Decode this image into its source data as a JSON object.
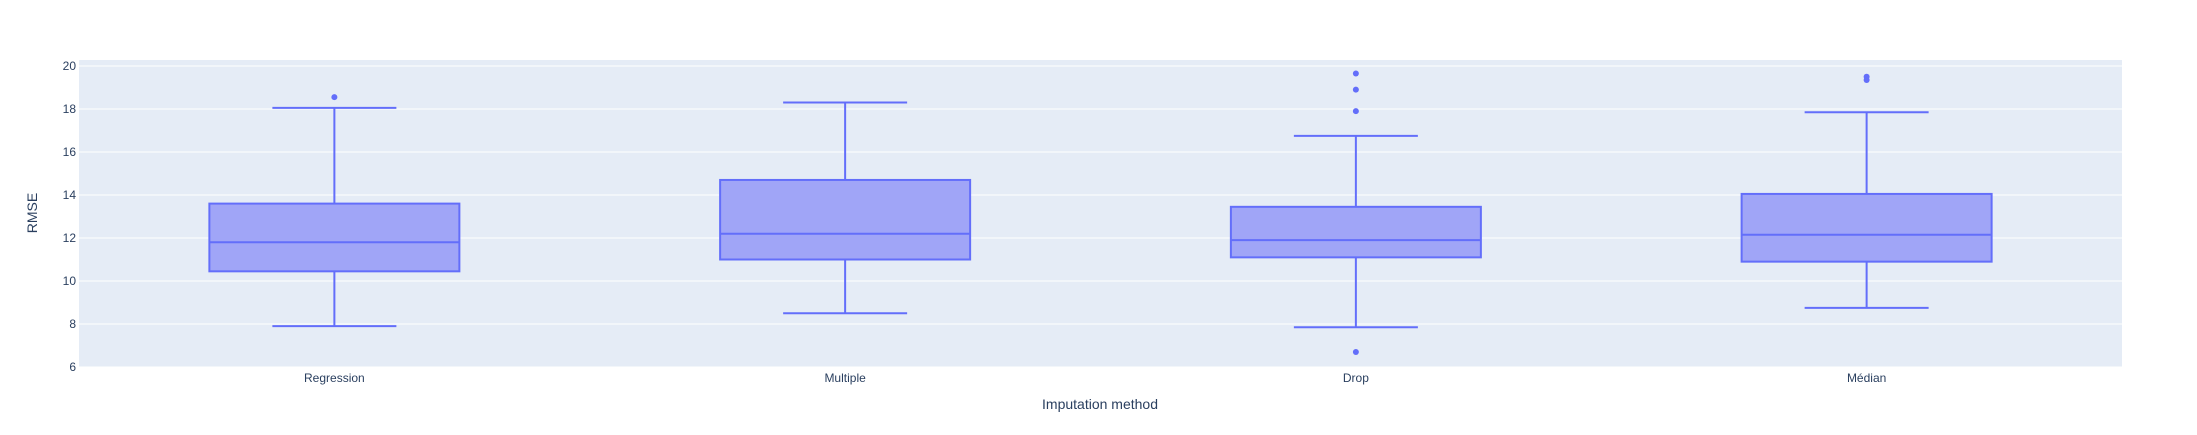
{
  "chart_data": {
    "type": "box",
    "xlabel": "Imputation method",
    "ylabel": "RMSE",
    "ylim": [
      6,
      20
    ],
    "yticks": [
      6,
      8,
      10,
      12,
      14,
      16,
      18,
      20
    ],
    "grid": true,
    "legend": "none",
    "colors": {
      "plot_bg": "#e5ecf6",
      "grid": "#ffffff",
      "box_line": "#636efa",
      "box_fill": "#a0a5f7",
      "text": "#2a3f5f"
    },
    "categories": [
      "Regression",
      "Multiple",
      "Drop",
      "Médian"
    ],
    "boxes": [
      {
        "category": "Regression",
        "lower_whisker": 7.9,
        "q1": 10.45,
        "median": 11.8,
        "q3": 13.6,
        "upper_whisker": 18.05,
        "outliers": [
          18.55
        ]
      },
      {
        "category": "Multiple",
        "lower_whisker": 8.5,
        "q1": 11.0,
        "median": 12.2,
        "q3": 14.7,
        "upper_whisker": 18.3,
        "outliers": []
      },
      {
        "category": "Drop",
        "lower_whisker": 7.85,
        "q1": 11.1,
        "median": 11.9,
        "q3": 13.45,
        "upper_whisker": 16.75,
        "outliers": [
          17.9,
          18.9,
          19.65,
          6.7
        ]
      },
      {
        "category": "Médian",
        "lower_whisker": 8.75,
        "q1": 10.9,
        "median": 12.15,
        "q3": 14.05,
        "upper_whisker": 17.85,
        "outliers": [
          19.35,
          19.5
        ]
      }
    ]
  }
}
